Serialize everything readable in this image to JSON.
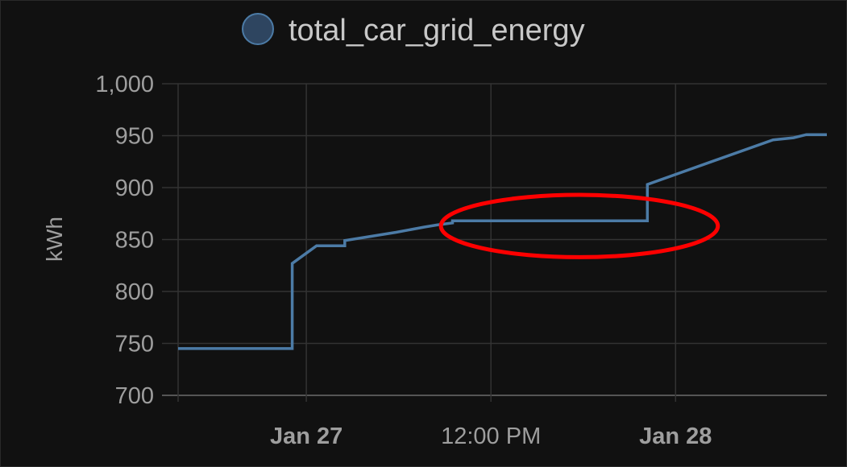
{
  "chart_data": {
    "type": "line",
    "title": "",
    "xlabel": "",
    "ylabel": "kWh",
    "ylim": [
      700,
      1000
    ],
    "xlim": [
      "2024-01-26T15:40",
      "2024-01-28T09:50"
    ],
    "y_ticks": [
      700,
      750,
      800,
      850,
      900,
      950,
      1000
    ],
    "y_tick_labels": [
      "700",
      "750",
      "800",
      "850",
      "900",
      "950",
      "1,000"
    ],
    "x_ticks": [
      {
        "value": "2024-01-27T00:00",
        "label": "Jan 27",
        "bold": true
      },
      {
        "value": "2024-01-27T12:00",
        "label": "12:00 PM",
        "bold": false
      },
      {
        "value": "2024-01-28T00:00",
        "label": "Jan 28",
        "bold": true
      }
    ],
    "grid": true,
    "legend_position": "top-center",
    "line_style": "step",
    "series": [
      {
        "name": "total_car_grid_energy",
        "color": "#4c7ba6",
        "points": [
          {
            "x": "2024-01-26T15:40",
            "y": 745
          },
          {
            "x": "2024-01-26T23:05",
            "y": 745
          },
          {
            "x": "2024-01-26T23:05",
            "y": 827
          },
          {
            "x": "2024-01-27T00:40",
            "y": 844
          },
          {
            "x": "2024-01-27T02:30",
            "y": 844
          },
          {
            "x": "2024-01-27T02:30",
            "y": 849
          },
          {
            "x": "2024-01-27T05:50",
            "y": 857
          },
          {
            "x": "2024-01-27T07:40",
            "y": 862
          },
          {
            "x": "2024-01-27T08:30",
            "y": 864
          },
          {
            "x": "2024-01-27T09:30",
            "y": 866
          },
          {
            "x": "2024-01-27T09:30",
            "y": 868
          },
          {
            "x": "2024-01-27T22:10",
            "y": 868
          },
          {
            "x": "2024-01-27T22:10",
            "y": 903
          },
          {
            "x": "2024-01-28T06:20",
            "y": 946
          },
          {
            "x": "2024-01-28T07:40",
            "y": 948
          },
          {
            "x": "2024-01-28T08:30",
            "y": 951
          },
          {
            "x": "2024-01-28T09:50",
            "y": 951
          }
        ]
      }
    ],
    "annotations": [
      {
        "type": "ellipse",
        "color": "#ff0000",
        "x_center": "2024-01-27T17:45",
        "y_center": 863,
        "x_halfwidth_hours": 9.0,
        "y_halfwidth": 30
      }
    ]
  }
}
